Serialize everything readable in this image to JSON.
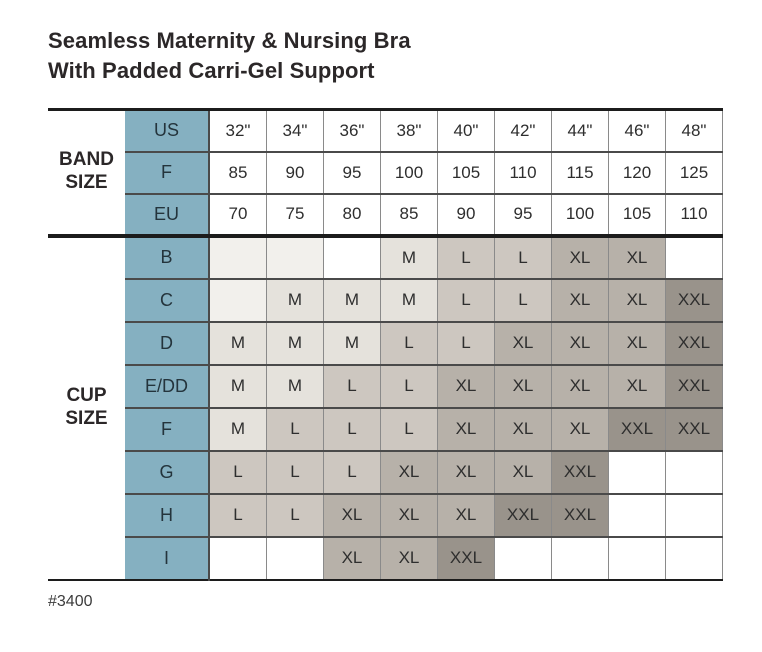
{
  "title": {
    "line1": "Seamless Maternity & Nursing Bra",
    "line2": "With Padded Carri-Gel Support"
  },
  "footer": {
    "product_code": "#3400"
  },
  "colors": {
    "teal": "#85b0c1",
    "shade-tint": "#f2f0ec",
    "shade-m": "#e5e2dc",
    "shade-l": "#cdc7c0",
    "shade-xl": "#b7b1a9",
    "shade-xxl": "#99938b",
    "grid": "#8a8a8a",
    "rule": "#4a4a4a",
    "heavy": "#1c1c1c",
    "text": "#2e2e2e"
  },
  "table": {
    "band_section_label": "BAND\nSIZE",
    "cup_section_label": "CUP\nSIZE",
    "band_rows": [
      {
        "label": "US",
        "values": [
          "32\"",
          "34\"",
          "36\"",
          "38\"",
          "40\"",
          "42\"",
          "44\"",
          "46\"",
          "48\""
        ]
      },
      {
        "label": "F",
        "values": [
          "85",
          "90",
          "95",
          "100",
          "105",
          "110",
          "115",
          "120",
          "125"
        ]
      },
      {
        "label": "EU",
        "values": [
          "70",
          "75",
          "80",
          "85",
          "90",
          "95",
          "100",
          "105",
          "110"
        ]
      }
    ],
    "cup_rows": [
      {
        "label": "B",
        "cells": [
          {
            "value": "",
            "shade": "tint"
          },
          {
            "value": "",
            "shade": "tint"
          },
          {
            "value": "",
            "shade": "none"
          },
          {
            "value": "M",
            "shade": "m"
          },
          {
            "value": "L",
            "shade": "l"
          },
          {
            "value": "L",
            "shade": "l"
          },
          {
            "value": "XL",
            "shade": "xl"
          },
          {
            "value": "XL",
            "shade": "xl"
          },
          {
            "value": "",
            "shade": "none"
          }
        ]
      },
      {
        "label": "C",
        "cells": [
          {
            "value": "",
            "shade": "tint"
          },
          {
            "value": "M",
            "shade": "m"
          },
          {
            "value": "M",
            "shade": "m"
          },
          {
            "value": "M",
            "shade": "m"
          },
          {
            "value": "L",
            "shade": "l"
          },
          {
            "value": "L",
            "shade": "l"
          },
          {
            "value": "XL",
            "shade": "xl"
          },
          {
            "value": "XL",
            "shade": "xl"
          },
          {
            "value": "XXL",
            "shade": "xxl"
          }
        ]
      },
      {
        "label": "D",
        "cells": [
          {
            "value": "M",
            "shade": "m"
          },
          {
            "value": "M",
            "shade": "m"
          },
          {
            "value": "M",
            "shade": "m"
          },
          {
            "value": "L",
            "shade": "l"
          },
          {
            "value": "L",
            "shade": "l"
          },
          {
            "value": "XL",
            "shade": "xl"
          },
          {
            "value": "XL",
            "shade": "xl"
          },
          {
            "value": "XL",
            "shade": "xl"
          },
          {
            "value": "XXL",
            "shade": "xxl"
          }
        ]
      },
      {
        "label": "E/DD",
        "cells": [
          {
            "value": "M",
            "shade": "m"
          },
          {
            "value": "M",
            "shade": "m"
          },
          {
            "value": "L",
            "shade": "l"
          },
          {
            "value": "L",
            "shade": "l"
          },
          {
            "value": "XL",
            "shade": "xl"
          },
          {
            "value": "XL",
            "shade": "xl"
          },
          {
            "value": "XL",
            "shade": "xl"
          },
          {
            "value": "XL",
            "shade": "xl"
          },
          {
            "value": "XXL",
            "shade": "xxl"
          }
        ]
      },
      {
        "label": "F",
        "cells": [
          {
            "value": "M",
            "shade": "m"
          },
          {
            "value": "L",
            "shade": "l"
          },
          {
            "value": "L",
            "shade": "l"
          },
          {
            "value": "L",
            "shade": "l"
          },
          {
            "value": "XL",
            "shade": "xl"
          },
          {
            "value": "XL",
            "shade": "xl"
          },
          {
            "value": "XL",
            "shade": "xl"
          },
          {
            "value": "XXL",
            "shade": "xxl"
          },
          {
            "value": "XXL",
            "shade": "xxl"
          }
        ]
      },
      {
        "label": "G",
        "cells": [
          {
            "value": "L",
            "shade": "l"
          },
          {
            "value": "L",
            "shade": "l"
          },
          {
            "value": "L",
            "shade": "l"
          },
          {
            "value": "XL",
            "shade": "xl"
          },
          {
            "value": "XL",
            "shade": "xl"
          },
          {
            "value": "XL",
            "shade": "xl"
          },
          {
            "value": "XXL",
            "shade": "xxl"
          },
          {
            "value": "",
            "shade": "none"
          },
          {
            "value": "",
            "shade": "none"
          }
        ]
      },
      {
        "label": "H",
        "cells": [
          {
            "value": "L",
            "shade": "l"
          },
          {
            "value": "L",
            "shade": "l"
          },
          {
            "value": "XL",
            "shade": "xl"
          },
          {
            "value": "XL",
            "shade": "xl"
          },
          {
            "value": "XL",
            "shade": "xl"
          },
          {
            "value": "XXL",
            "shade": "xxl"
          },
          {
            "value": "XXL",
            "shade": "xxl"
          },
          {
            "value": "",
            "shade": "none"
          },
          {
            "value": "",
            "shade": "none"
          }
        ]
      },
      {
        "label": "I",
        "cells": [
          {
            "value": "",
            "shade": "none"
          },
          {
            "value": "",
            "shade": "none"
          },
          {
            "value": "XL",
            "shade": "xl"
          },
          {
            "value": "XL",
            "shade": "xl"
          },
          {
            "value": "XXL",
            "shade": "xxl"
          },
          {
            "value": "",
            "shade": "none"
          },
          {
            "value": "",
            "shade": "none"
          },
          {
            "value": "",
            "shade": "none"
          },
          {
            "value": "",
            "shade": "none"
          }
        ]
      }
    ]
  }
}
